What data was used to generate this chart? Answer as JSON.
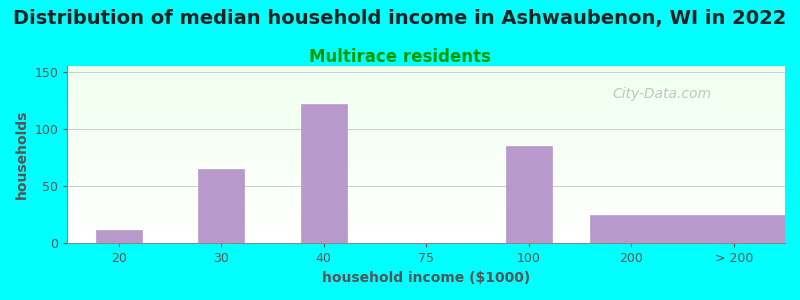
{
  "title": "Distribution of median household income in Ashwaubenon, WI in 2022",
  "subtitle": "Multirace residents",
  "xlabel": "household income ($1000)",
  "ylabel": "households",
  "title_fontsize": 14,
  "subtitle_fontsize": 12,
  "subtitle_color": "#009900",
  "axis_label_fontsize": 10,
  "background_color": "#00ffff",
  "plot_bg_gradient_top": "#efffef",
  "plot_bg_gradient_bottom": "#ffffff",
  "bar_color": "#b899cc",
  "bar_edge_color": "#b899cc",
  "categories": [
    "20",
    "30",
    "40",
    "75",
    "100",
    "200",
    "> 200"
  ],
  "values": [
    12,
    65,
    122,
    0,
    85,
    0,
    25
  ],
  "xlim": [
    -0.5,
    6.5
  ],
  "ylim": [
    0,
    155
  ],
  "yticks": [
    0,
    50,
    100,
    150
  ],
  "grid_color": "#cccccc",
  "watermark_text": "City-Data.com",
  "watermark_color": "#bbbbbb",
  "tick_color": "#555555",
  "spine_color": "#888888"
}
